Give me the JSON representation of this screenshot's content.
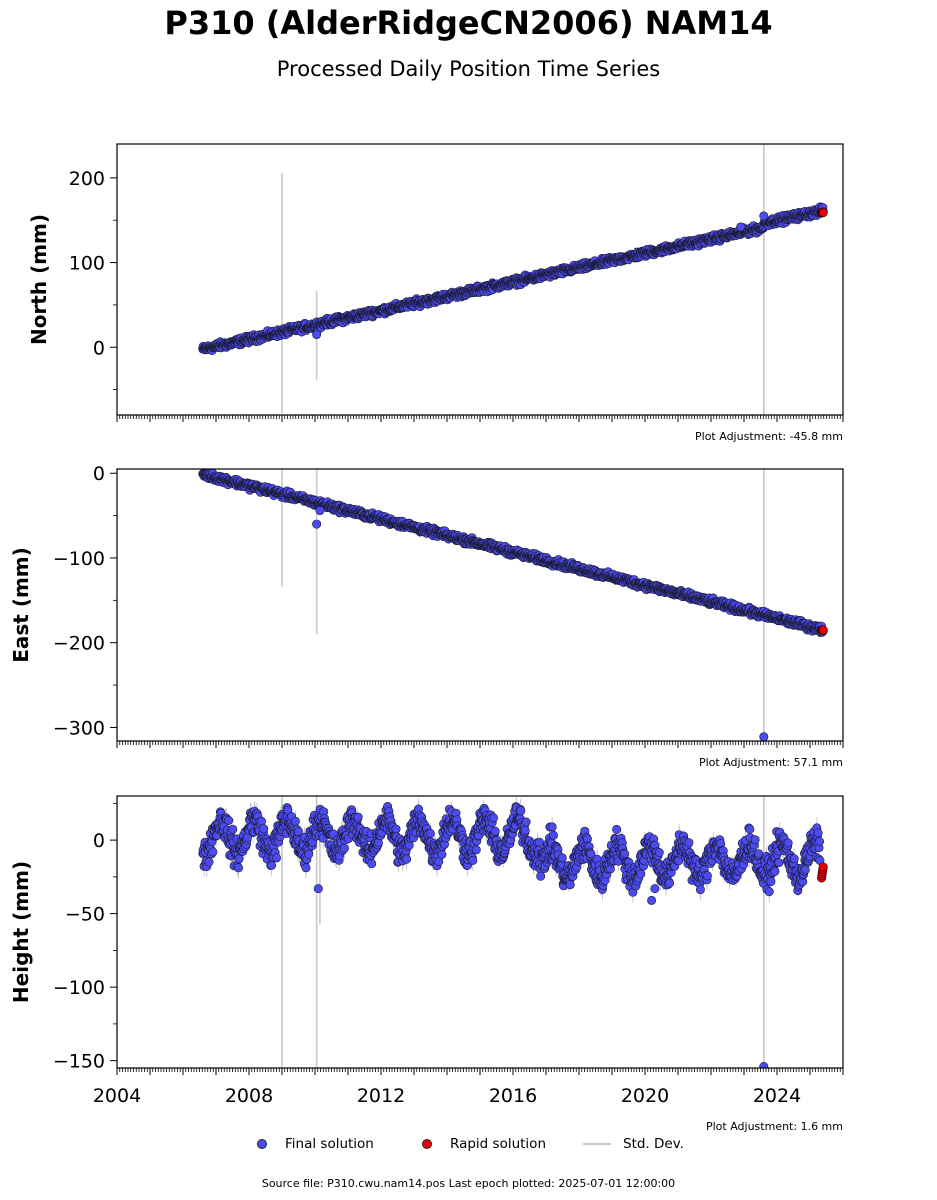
{
  "title": "P310 (AlderRidgeCN2006) NAM14",
  "subtitle": "Processed Daily Position Time Series",
  "source_note": "Source file: P310.cwu.nam14.pos  Last epoch plotted: 2025-07-01 12:00:00",
  "legend": {
    "final": "Final solution",
    "rapid": "Rapid solution",
    "std": "Std. Dev."
  },
  "colors": {
    "final": "#4b4bef",
    "rapid": "#e8000b",
    "std": "#c8c8c8",
    "edge": "#1a1a2e"
  },
  "chart_data": [
    {
      "type": "scatter",
      "ylabel": "North (mm)",
      "adjustment": "Plot Adjustment: -45.8 mm",
      "xlim": [
        2004,
        2026
      ],
      "ylim": [
        -80,
        240
      ],
      "yticks": [
        0,
        100,
        200
      ],
      "ytick_labels": [
        "0",
        "100",
        "200"
      ],
      "trend": {
        "x0": 2006.6,
        "y0": 0,
        "x1": 2025.4,
        "y1": 159
      },
      "step": {
        "x": 2023.6,
        "dy": 5
      },
      "noise": 2,
      "outliers": [
        {
          "x": 2010.05,
          "y": 15
        },
        {
          "x": 2023.6,
          "y": 155
        },
        {
          "x": 2022.9,
          "y": 142
        }
      ],
      "error_bars": [
        {
          "x": 2009.0,
          "lo": -78,
          "hi": 206
        },
        {
          "x": 2010.05,
          "lo": -38,
          "hi": 66
        },
        {
          "x": 2023.6,
          "lo": -80,
          "hi": 240
        }
      ],
      "rapid": {
        "x": 2025.35,
        "y": 159
      }
    },
    {
      "type": "scatter",
      "ylabel": "East (mm)",
      "adjustment": "Plot Adjustment: 57.1 mm",
      "xlim": [
        2004,
        2026
      ],
      "ylim": [
        -316,
        5
      ],
      "yticks": [
        0,
        -100,
        -200,
        -300
      ],
      "ytick_labels": [
        "0",
        "−100",
        "−200",
        "−300"
      ],
      "trend": {
        "x0": 2006.6,
        "y0": -1,
        "x1": 2025.4,
        "y1": -185
      },
      "step": null,
      "noise": 2,
      "outliers": [
        {
          "x": 2010.05,
          "y": -60
        },
        {
          "x": 2023.6,
          "y": -311
        },
        {
          "x": 2010.15,
          "y": -44
        }
      ],
      "error_bars": [
        {
          "x": 2009.0,
          "lo": -134,
          "hi": 5
        },
        {
          "x": 2010.05,
          "lo": -190,
          "hi": 5
        },
        {
          "x": 2023.6,
          "lo": -316,
          "hi": 5
        }
      ],
      "rapid": {
        "x": 2025.35,
        "y": -185
      }
    },
    {
      "type": "scatter",
      "ylabel": "Height (mm)",
      "adjustment": "Plot Adjustment: 1.6 mm",
      "xlim": [
        2004,
        2026
      ],
      "ylim": [
        -155,
        30
      ],
      "yticks": [
        0,
        -50,
        -100,
        -150
      ],
      "ytick_labels": [
        "0",
        "−50",
        "−100",
        "−150"
      ],
      "xticks": [
        2004,
        2008,
        2012,
        2016,
        2020,
        2024
      ],
      "xtick_labels": [
        "2004",
        "2008",
        "2012",
        "2016",
        "2020",
        "2024"
      ],
      "seasonal": {
        "amp": 11,
        "base_start": 2,
        "base_mid": 3,
        "drop_year": 2016.8,
        "base_end": -15
      },
      "noise": 5,
      "outliers": [
        {
          "x": 2010.1,
          "y": -33
        },
        {
          "x": 2020.2,
          "y": -41
        },
        {
          "x": 2023.6,
          "y": -154
        },
        {
          "x": 2020.3,
          "y": -33
        }
      ],
      "error_bars": [
        {
          "x": 2009.0,
          "lo": -155,
          "hi": 30
        },
        {
          "x": 2010.05,
          "lo": -155,
          "hi": 30
        },
        {
          "x": 2010.15,
          "lo": -57,
          "hi": 0
        },
        {
          "x": 2023.6,
          "lo": -155,
          "hi": 30
        }
      ],
      "rapid": {
        "x": 2025.35,
        "y": -22
      }
    }
  ]
}
